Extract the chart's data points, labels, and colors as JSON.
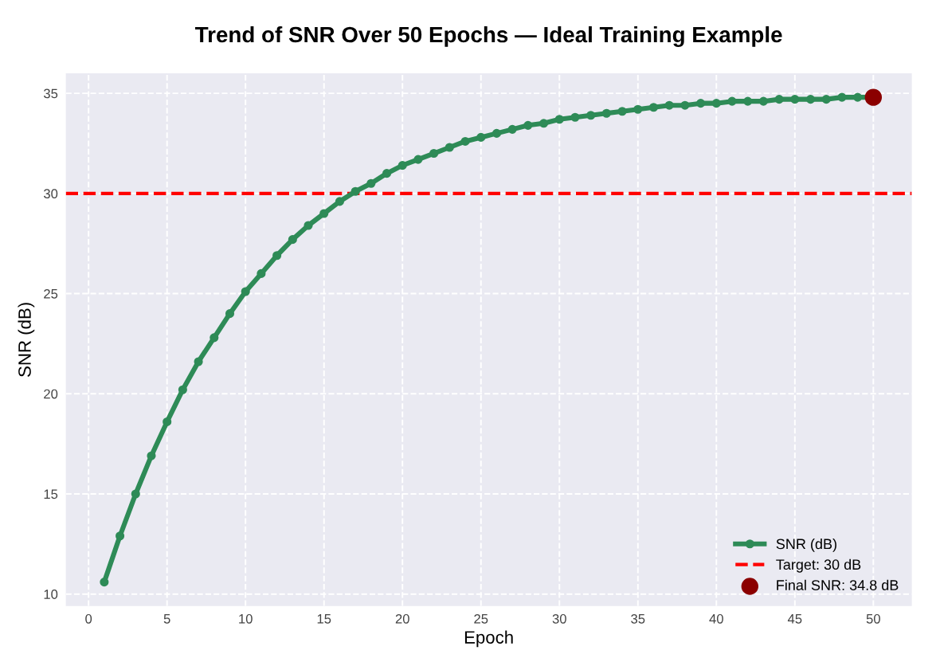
{
  "chart_data": {
    "type": "line",
    "title": "Trend of SNR Over 50 Epochs — Ideal Training Example",
    "xlabel": "Epoch",
    "ylabel": "SNR (dB)",
    "x": [
      1,
      2,
      3,
      4,
      5,
      6,
      7,
      8,
      9,
      10,
      11,
      12,
      13,
      14,
      15,
      16,
      17,
      18,
      19,
      20,
      21,
      22,
      23,
      24,
      25,
      26,
      27,
      28,
      29,
      30,
      31,
      32,
      33,
      34,
      35,
      36,
      37,
      38,
      39,
      40,
      41,
      42,
      43,
      44,
      45,
      46,
      47,
      48,
      49,
      50
    ],
    "series": [
      {
        "name": "SNR (dB)",
        "color": "#2e8b57",
        "marker": "circle",
        "values": [
          10.6,
          12.9,
          15.0,
          16.9,
          18.6,
          20.2,
          21.6,
          22.8,
          24.0,
          25.1,
          26.0,
          26.9,
          27.7,
          28.4,
          29.0,
          29.6,
          30.1,
          30.5,
          31.0,
          31.4,
          31.7,
          32.0,
          32.3,
          32.6,
          32.8,
          33.0,
          33.2,
          33.4,
          33.5,
          33.7,
          33.8,
          33.9,
          34.0,
          34.1,
          34.2,
          34.3,
          34.4,
          34.4,
          34.5,
          34.5,
          34.6,
          34.6,
          34.6,
          34.7,
          34.7,
          34.7,
          34.7,
          34.8,
          34.8,
          34.8
        ]
      },
      {
        "name": "Final SNR: 34.8 dB",
        "type": "scatter",
        "color": "#8b0000",
        "marker": "circle",
        "x": [
          50
        ],
        "values": [
          34.8
        ]
      }
    ],
    "ref_lines": [
      {
        "axis": "y",
        "value": 30,
        "label": "Target: 30 dB",
        "color": "#ff0000",
        "line_style": "dashed"
      }
    ],
    "xlim": [
      -1.45,
      52.45
    ],
    "ylim": [
      9.4,
      36.0
    ],
    "xticks": [
      0,
      5,
      10,
      15,
      20,
      25,
      30,
      35,
      40,
      45,
      50
    ],
    "yticks": [
      10,
      15,
      20,
      25,
      30,
      35
    ],
    "grid": true,
    "legend": "bottom right"
  }
}
